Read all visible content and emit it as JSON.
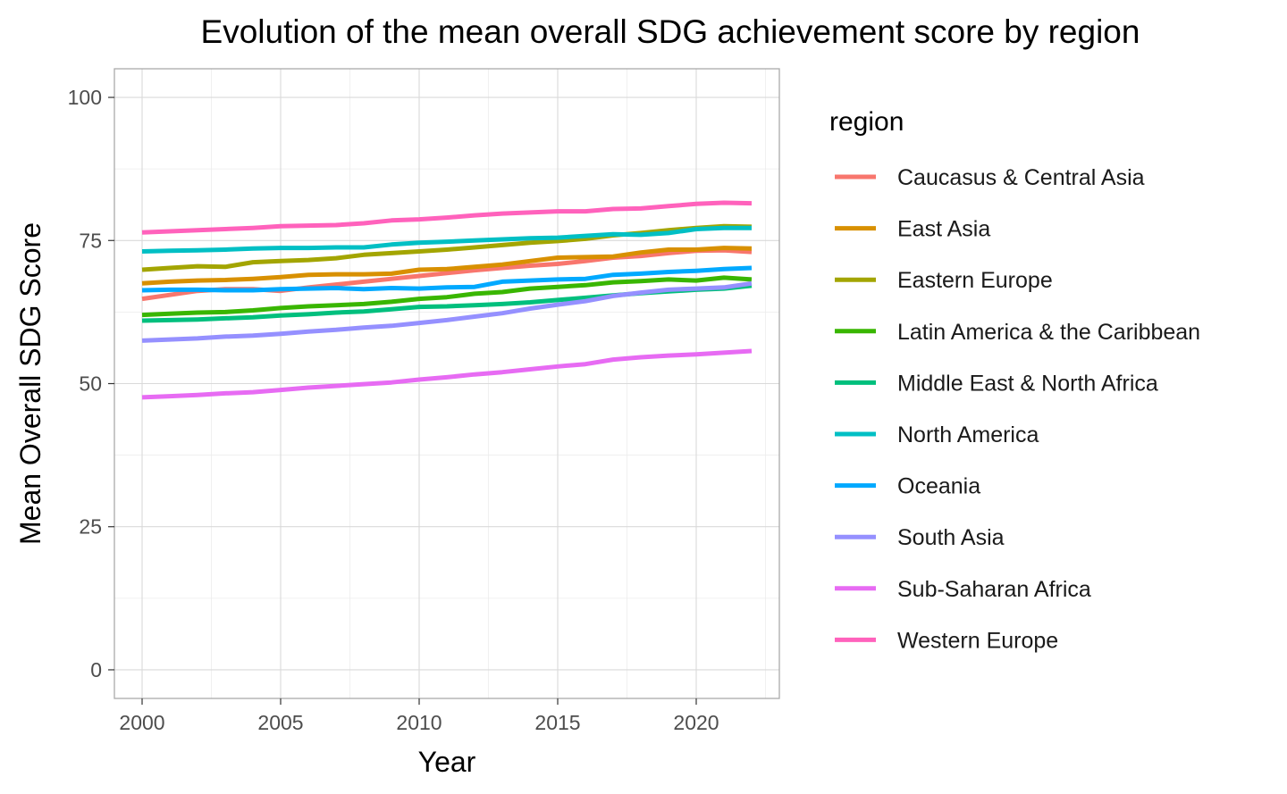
{
  "chart_data": {
    "type": "line",
    "title": "Evolution of the mean overall SDG achievement score by region",
    "xlabel": "Year",
    "ylabel": "Mean Overall SDG Score",
    "xlim": [
      1999,
      2023
    ],
    "ylim": [
      -5,
      105
    ],
    "x_ticks": [
      2000,
      2005,
      2010,
      2015,
      2020
    ],
    "y_ticks": [
      0,
      25,
      50,
      75,
      100
    ],
    "grid": true,
    "legend": {
      "title": "region",
      "position": "right"
    },
    "x": [
      2000,
      2001,
      2002,
      2003,
      2004,
      2005,
      2006,
      2007,
      2008,
      2009,
      2010,
      2011,
      2012,
      2013,
      2014,
      2015,
      2016,
      2017,
      2018,
      2019,
      2020,
      2021,
      2022
    ],
    "series": [
      {
        "name": "Caucasus & Central Asia",
        "color": "#F8766D",
        "values": [
          64.8,
          65.5,
          66.2,
          66.5,
          66.5,
          66.2,
          66.8,
          67.3,
          67.8,
          68.3,
          68.8,
          69.3,
          69.8,
          70.2,
          70.6,
          70.9,
          71.4,
          72.0,
          72.3,
          72.8,
          73.2,
          73.3,
          73.0
        ]
      },
      {
        "name": "East Asia",
        "color": "#D89000",
        "values": [
          67.5,
          67.8,
          68.0,
          68.1,
          68.3,
          68.6,
          69.0,
          69.1,
          69.1,
          69.2,
          69.9,
          70.0,
          70.4,
          70.8,
          71.4,
          72.0,
          72.1,
          72.2,
          72.9,
          73.4,
          73.4,
          73.7,
          73.6
        ]
      },
      {
        "name": "Eastern Europe",
        "color": "#A3A500",
        "values": [
          69.9,
          70.2,
          70.5,
          70.4,
          71.2,
          71.4,
          71.6,
          71.9,
          72.5,
          72.8,
          73.1,
          73.4,
          73.8,
          74.2,
          74.6,
          74.9,
          75.3,
          75.9,
          76.3,
          76.8,
          77.2,
          77.5,
          77.4
        ]
      },
      {
        "name": "Latin America & the Caribbean",
        "color": "#39B600",
        "values": [
          62.0,
          62.2,
          62.4,
          62.5,
          62.8,
          63.2,
          63.5,
          63.7,
          63.9,
          64.3,
          64.8,
          65.1,
          65.7,
          66.0,
          66.6,
          66.9,
          67.2,
          67.7,
          67.9,
          68.2,
          68.0,
          68.5,
          68.2
        ]
      },
      {
        "name": "Middle East & North Africa",
        "color": "#00BF7D",
        "values": [
          61.0,
          61.1,
          61.2,
          61.4,
          61.6,
          61.9,
          62.1,
          62.4,
          62.6,
          63.0,
          63.4,
          63.5,
          63.7,
          63.9,
          64.2,
          64.6,
          65.0,
          65.4,
          65.8,
          66.1,
          66.4,
          66.6,
          67.1
        ]
      },
      {
        "name": "North America",
        "color": "#00BFC4",
        "values": [
          73.1,
          73.2,
          73.3,
          73.4,
          73.6,
          73.7,
          73.7,
          73.8,
          73.8,
          74.3,
          74.6,
          74.8,
          75.0,
          75.2,
          75.4,
          75.5,
          75.8,
          76.1,
          76.0,
          76.3,
          77.0,
          77.2,
          77.2
        ]
      },
      {
        "name": "Oceania",
        "color": "#00A9FF",
        "values": [
          66.3,
          66.4,
          66.4,
          66.3,
          66.3,
          66.5,
          66.6,
          66.7,
          66.5,
          66.7,
          66.6,
          66.8,
          66.9,
          67.8,
          68.0,
          68.2,
          68.3,
          69.0,
          69.2,
          69.5,
          69.7,
          70.0,
          70.2
        ]
      },
      {
        "name": "South Asia",
        "color": "#9590FF",
        "values": [
          57.5,
          57.7,
          57.9,
          58.2,
          58.4,
          58.7,
          59.1,
          59.4,
          59.8,
          60.1,
          60.6,
          61.1,
          61.7,
          62.3,
          63.1,
          63.8,
          64.4,
          65.3,
          65.9,
          66.4,
          66.6,
          66.8,
          67.5
        ]
      },
      {
        "name": "Sub-Saharan Africa",
        "color": "#E76BF3",
        "values": [
          47.6,
          47.8,
          48.0,
          48.3,
          48.5,
          48.9,
          49.3,
          49.6,
          49.9,
          50.2,
          50.7,
          51.1,
          51.6,
          52.0,
          52.5,
          53.0,
          53.4,
          54.2,
          54.6,
          54.9,
          55.1,
          55.4,
          55.7
        ]
      },
      {
        "name": "Western Europe",
        "color": "#FF62BC",
        "values": [
          76.4,
          76.6,
          76.8,
          77.0,
          77.2,
          77.5,
          77.6,
          77.7,
          78.0,
          78.5,
          78.7,
          79.0,
          79.4,
          79.7,
          79.9,
          80.1,
          80.1,
          80.5,
          80.6,
          81.0,
          81.4,
          81.6,
          81.5
        ]
      }
    ]
  }
}
